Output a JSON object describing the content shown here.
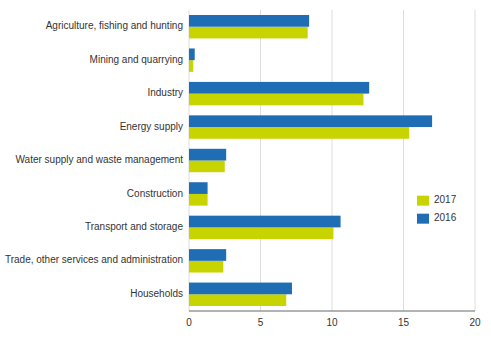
{
  "chart_data": {
    "type": "bar",
    "orientation": "horizontal",
    "categories": [
      "Agriculture, fishing and hunting",
      "Mining and quarrying",
      "Industry",
      "Energy supply",
      "Water supply and waste management",
      "Construction",
      "Transport and storage",
      "Trade, other services and administration",
      "Households"
    ],
    "series": [
      {
        "name": "2017",
        "color": "#c8d400",
        "values": [
          8.3,
          0.3,
          12.2,
          15.4,
          2.5,
          1.3,
          10.1,
          2.4,
          6.8
        ]
      },
      {
        "name": "2016",
        "color": "#1f6db5",
        "values": [
          8.4,
          0.4,
          12.6,
          17.0,
          2.6,
          1.3,
          10.6,
          2.6,
          7.2
        ]
      }
    ],
    "xlim": [
      0,
      20
    ],
    "xticks": [
      0,
      5,
      10,
      15,
      20
    ],
    "grid": true,
    "legend": "right"
  }
}
